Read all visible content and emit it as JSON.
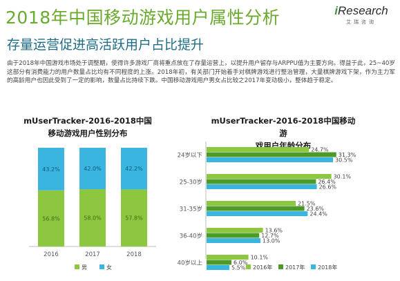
{
  "header": {
    "title": "2018年中国移动游戏用户属性分析",
    "subtitle": "存量运营促进高活跃用户占比提升"
  },
  "logo": {
    "word_i": "i",
    "word_rest": "Research",
    "sub": "艾瑞咨询"
  },
  "paragraph": "由于2018年中国游戏市场处于调整期，使得许多游戏厂商将重点放在了存量运营上，以提升用户留存与ARPPU值为主要方向。得益于此，25~40岁这部分有消费能力的用户数量占比均有不同程度的上涨。2018年初，有关部门开始着手对棋牌游戏进行整治管理，大量棋牌游戏下架，作为主力军的高龄用户也因此受到了一定的影响，数量占比持续下跌。中国移动游戏用户男女占比较之2017年变动极小，整体趋于稳定。",
  "colors": {
    "green": "#8dc63f",
    "blue": "#39b5e0",
    "dark_green": "#4c9a2a",
    "title_green": "#6aaa2f",
    "subtitle_blue": "#1f6c86"
  },
  "chart_data": [
    {
      "type": "bar",
      "stacked": true,
      "title_line1": "mUserTracker-2016-2018中国",
      "title_line2": "移动游戏用户性别分布",
      "categories": [
        "2016",
        "2017",
        "2018"
      ],
      "series": [
        {
          "name": "男",
          "values": [
            56.8,
            58.0,
            57.8
          ],
          "labels": [
            "56.8%",
            "58.0%",
            "57.8%"
          ],
          "color": "#8dc63f"
        },
        {
          "name": "女",
          "values": [
            43.2,
            42.0,
            42.2
          ],
          "labels": [
            "43.2%",
            "42.0%",
            "42.2%"
          ],
          "color": "#39b5e0"
        }
      ],
      "ylim": [
        0,
        100
      ],
      "legend": "bottom"
    },
    {
      "type": "bar",
      "orientation": "horizontal",
      "title_line1": "mUserTracker-2016-2018中国移动游",
      "title_line2": "戏用户年龄分布",
      "categories": [
        "24岁以下",
        "25-30岁",
        "31-35岁",
        "36-40岁",
        "40岁以上"
      ],
      "series": [
        {
          "name": "2016年",
          "values": [
            24.7,
            30.1,
            21.5,
            13.6,
            10.1
          ],
          "labels": [
            "24.7%",
            "30.1%",
            "21.5%",
            "13.6%",
            "10.1%"
          ],
          "color": "#8dc63f"
        },
        {
          "name": "2017年",
          "values": [
            31.3,
            26.4,
            23.6,
            12.7,
            6.0
          ],
          "labels": [
            "31.3%",
            "26.4%",
            "23.6%",
            "12.7%",
            "6.0%"
          ],
          "color": "#4c9a2a"
        },
        {
          "name": "2018年",
          "values": [
            30.5,
            26.6,
            24.4,
            13.0,
            5.5
          ],
          "labels": [
            "30.5%",
            "26.6%",
            "24.4%",
            "13.0%",
            "5.5%"
          ],
          "color": "#39b5e0"
        }
      ],
      "legend": "bottom"
    }
  ]
}
